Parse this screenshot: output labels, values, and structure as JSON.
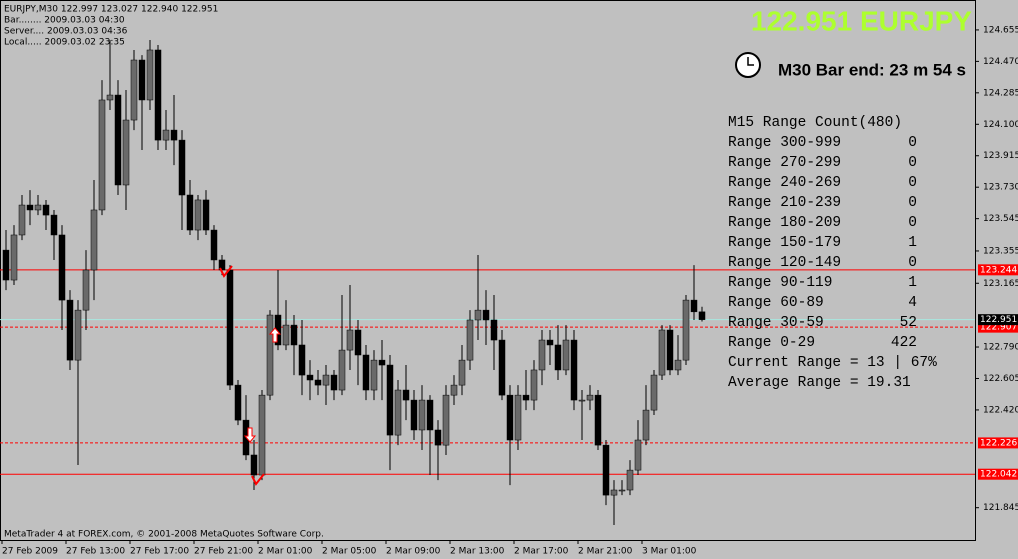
{
  "window": {
    "info_lines": [
      "EURJPY,M30  122.997 123.027 122.940 122.951",
      "Bar........ 2009.03.03 04:30",
      "Server.... 2009.03.03 04:36",
      "Local..... 2009.03.02 23:35"
    ],
    "footer": "MetaTrader 4 at FOREX.com, © 2001-2008 MetaQuotes Software Corp."
  },
  "chart_data": {
    "type": "candlestick",
    "title": "122.951 EURJPY",
    "subtitle": "M30 Bar end: 23 m 54 s",
    "categories": [
      "27 Feb 2009",
      null,
      null,
      null,
      null,
      null,
      null,
      null,
      "27 Feb 13:00",
      null,
      null,
      null,
      null,
      null,
      null,
      null,
      "27 Feb 17:00",
      null,
      null,
      null,
      null,
      null,
      null,
      null,
      "27 Feb 21:00",
      null,
      null,
      null,
      null,
      null,
      null,
      null,
      "2 Mar 01:00",
      null,
      null,
      null,
      null,
      null,
      null,
      null,
      "2 Mar 05:00",
      null,
      null,
      null,
      null,
      null,
      null,
      null,
      "2 Mar 09:00",
      null,
      null,
      null,
      null,
      null,
      null,
      null,
      "2 Mar 13:00",
      null,
      null,
      null,
      null,
      null,
      null,
      null,
      "2 Mar 17:00",
      null,
      null,
      null,
      null,
      null,
      null,
      null,
      "2 Mar 21:00",
      null,
      null,
      null,
      null,
      null,
      null,
      null,
      "3 Mar 01:00",
      null,
      null,
      null,
      null,
      null,
      null,
      null
    ],
    "open": [
      123.36,
      123.184,
      123.449,
      123.625,
      123.596,
      123.625,
      123.566,
      123.449,
      123.066,
      122.713,
      123.007,
      123.243,
      123.596,
      124.243,
      124.272,
      123.743,
      124.125,
      124.478,
      124.243,
      124.537,
      124.007,
      124.066,
      124.007,
      123.684,
      123.478,
      123.655,
      123.478,
      123.302,
      123.243,
      122.566,
      122.36,
      122.155,
      122.037,
      122.507,
      122.978,
      122.802,
      122.919,
      122.802,
      122.625,
      122.596,
      122.566,
      122.625,
      122.537,
      122.772,
      122.89,
      122.743,
      122.537,
      122.713,
      122.684,
      122.272,
      122.537,
      122.478,
      122.302,
      122.478,
      122.302,
      122.213,
      122.507,
      122.566,
      122.713,
      122.949,
      123.007,
      122.949,
      122.831,
      122.507,
      122.243,
      122.507,
      122.478,
      122.655,
      122.831,
      122.802,
      122.655,
      122.831,
      122.478,
      122.478,
      122.507,
      122.213,
      121.919,
      121.949,
      121.949,
      122.066,
      122.243,
      122.419,
      122.625,
      122.89,
      122.655,
      122.713,
      123.066,
      122.997
    ],
    "high": [
      123.478,
      123.507,
      123.684,
      123.713,
      123.684,
      123.655,
      123.596,
      123.507,
      123.125,
      123.066,
      123.36,
      123.772,
      124.36,
      124.596,
      124.36,
      124.302,
      124.537,
      124.507,
      124.596,
      124.566,
      124.184,
      124.272,
      124.066,
      123.772,
      123.684,
      123.713,
      123.507,
      123.331,
      123.272,
      122.596,
      122.507,
      122.243,
      122.537,
      123.007,
      123.243,
      123.066,
      122.978,
      122.949,
      122.713,
      122.655,
      122.684,
      122.655,
      123.096,
      123.155,
      122.949,
      122.802,
      122.772,
      122.831,
      122.743,
      122.596,
      122.684,
      122.537,
      122.566,
      122.507,
      122.36,
      122.566,
      122.625,
      122.802,
      123.007,
      123.331,
      123.125,
      123.096,
      122.89,
      122.566,
      122.566,
      122.655,
      122.713,
      122.89,
      122.89,
      122.919,
      122.919,
      122.89,
      122.537,
      122.566,
      122.537,
      122.243,
      122.007,
      122.007,
      122.125,
      122.36,
      122.566,
      122.655,
      122.919,
      122.919,
      122.86,
      123.096,
      123.272,
      123.027
    ],
    "low": [
      123.125,
      123.155,
      123.419,
      123.507,
      123.566,
      123.478,
      123.302,
      122.89,
      122.655,
      122.096,
      122.89,
      123.066,
      123.566,
      124.184,
      123.684,
      123.596,
      124.066,
      123.949,
      124.184,
      123.949,
      123.949,
      123.86,
      123.478,
      123.449,
      123.419,
      123.449,
      123.243,
      123.213,
      122.537,
      122.331,
      122.125,
      121.949,
      122.007,
      122.478,
      122.772,
      122.772,
      122.625,
      122.507,
      122.478,
      122.507,
      122.449,
      122.478,
      122.507,
      122.655,
      122.566,
      122.478,
      122.478,
      122.478,
      122.066,
      122.213,
      122.36,
      122.243,
      122.184,
      122.037,
      122.007,
      122.155,
      122.449,
      122.507,
      122.655,
      122.831,
      122.802,
      122.655,
      122.478,
      121.978,
      122.184,
      122.419,
      122.419,
      122.566,
      122.684,
      122.596,
      122.625,
      122.419,
      122.243,
      122.419,
      122.184,
      121.86,
      121.743,
      121.919,
      121.919,
      122.037,
      122.213,
      122.39,
      122.596,
      122.625,
      122.625,
      122.684,
      122.949,
      122.94
    ],
    "close": [
      123.184,
      123.449,
      123.625,
      123.596,
      123.625,
      123.566,
      123.449,
      123.066,
      122.713,
      123.007,
      123.243,
      123.596,
      124.243,
      124.272,
      123.743,
      124.125,
      124.478,
      124.243,
      124.537,
      124.007,
      124.066,
      124.007,
      123.684,
      123.478,
      123.655,
      123.478,
      123.302,
      123.243,
      122.566,
      122.36,
      122.155,
      122.037,
      122.507,
      122.978,
      122.802,
      122.919,
      122.802,
      122.625,
      122.596,
      122.566,
      122.625,
      122.537,
      122.772,
      122.89,
      122.743,
      122.537,
      122.713,
      122.684,
      122.272,
      122.537,
      122.478,
      122.302,
      122.478,
      122.302,
      122.213,
      122.507,
      122.566,
      122.713,
      122.949,
      123.007,
      122.949,
      122.831,
      122.507,
      122.243,
      122.507,
      122.478,
      122.655,
      122.831,
      122.802,
      122.655,
      122.831,
      122.478,
      122.478,
      122.507,
      122.213,
      121.919,
      121.949,
      121.949,
      122.066,
      122.243,
      122.419,
      122.625,
      122.89,
      122.655,
      122.713,
      123.066,
      122.997,
      122.951
    ],
    "up_color": "#6a6a6a",
    "down_color": "#000000",
    "ylim": [
      121.655,
      124.831
    ],
    "yticks": [
      124.655,
      {
        "value": 124.47,
        "label": "124.470"
      },
      124.285,
      {
        "value": 124.1,
        "label": "124.100"
      },
      123.915,
      {
        "value": 123.73,
        "label": "123.730"
      },
      123.545,
      123.355,
      123.165,
      {
        "value": 122.79,
        "label": "122.790"
      },
      122.605,
      {
        "value": 122.42,
        "label": "122.420"
      },
      121.845
    ],
    "levels": [
      {
        "value": 123.244,
        "style": "solid",
        "color": "#ff0000"
      },
      {
        "value": 122.907,
        "style": "dashed",
        "color": "#ff0000"
      },
      {
        "value": 122.226,
        "style": "dashed",
        "color": "#ff0000"
      },
      {
        "value": 122.042,
        "style": "solid",
        "color": "#ff0000"
      },
      {
        "value": 122.951,
        "style": "solid",
        "color": "#a8e8e0"
      }
    ]
  },
  "range_panel": {
    "title": "M15 Range Count(480)",
    "rows": [
      {
        "label": "Range 300-999",
        "count": 0
      },
      {
        "label": "Range 270-299",
        "count": 0
      },
      {
        "label": "Range 240-269",
        "count": 0
      },
      {
        "label": "Range 210-239",
        "count": 0
      },
      {
        "label": "Range 180-209",
        "count": 0
      },
      {
        "label": "Range 150-179",
        "count": 1
      },
      {
        "label": "Range 120-149",
        "count": 0
      },
      {
        "label": "Range 90-119",
        "count": 1
      },
      {
        "label": "Range 60-89",
        "count": 4
      },
      {
        "label": "Range 30-59",
        "count": 52
      },
      {
        "label": "Range 0-29",
        "count": 422
      }
    ],
    "current": "Current Range = 13 | 67%",
    "average": "Average Range = 19.31"
  }
}
